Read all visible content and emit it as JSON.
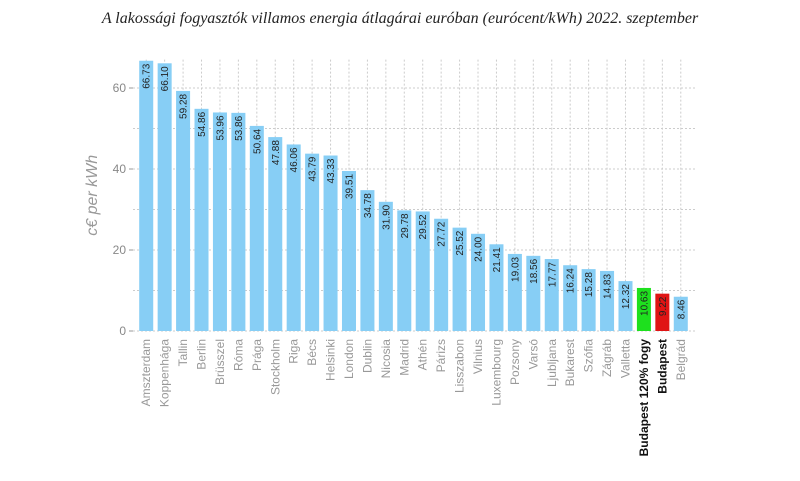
{
  "chart_data": {
    "type": "bar",
    "title": "A lakossági fogyasztók villamos energia átlagárai euróban (eurócent/kWh) 2022. szeptember",
    "ylabel": "c€ per kWh",
    "ylim": [
      0,
      67
    ],
    "yticks": [
      0,
      20,
      40,
      60
    ],
    "grid": true,
    "categories": [
      "Amszterdam",
      "Koppenhága",
      "Tallin",
      "Berlin",
      "Brüsszel",
      "Róma",
      "Prága",
      "Stockholm",
      "Riga",
      "Bécs",
      "Helsinki",
      "London",
      "Dublin",
      "Nicosia",
      "Madrid",
      "Athén",
      "Párizs",
      "Lisszabon",
      "Vilnius",
      "Luxembourg",
      "Pozsony",
      "Varsó",
      "Ljubljana",
      "Bukarest",
      "Szófia",
      "Zágráb",
      "Valletta",
      "Budapest 120% fogy",
      "Budapest",
      "Belgrád"
    ],
    "values": [
      66.73,
      66.1,
      59.28,
      54.86,
      53.96,
      53.86,
      50.64,
      47.88,
      46.06,
      43.79,
      43.33,
      39.51,
      34.78,
      31.9,
      29.78,
      29.52,
      27.72,
      25.52,
      24.0,
      21.41,
      19.03,
      18.56,
      17.77,
      16.24,
      15.28,
      14.83,
      12.32,
      10.63,
      9.22,
      8.46
    ],
    "value_labels": [
      "66.73",
      "66.10",
      "59.28",
      "54.86",
      "53.96",
      "53.86",
      "50.64",
      "47.88",
      "46.06",
      "43.79",
      "43.33",
      "39.51",
      "34.78",
      "31.90",
      "29.78",
      "29.52",
      "27.72",
      "25.52",
      "24.00",
      "21.41",
      "19.03",
      "18.56",
      "17.77",
      "16.24",
      "15.28",
      "14.83",
      "12.32",
      "10.63",
      "9.22",
      "8.46"
    ],
    "colors": {
      "default": "#87cef5",
      "highlight": {
        "Budapest 120% fogy": "#1ee01e",
        "Budapest": "#e01414"
      },
      "grid": "#cccccc"
    },
    "bold_categories": [
      "Budapest 120% fogy",
      "Budapest"
    ]
  }
}
